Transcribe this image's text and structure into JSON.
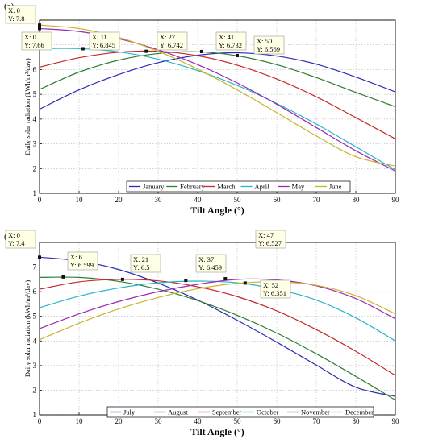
{
  "panels": [
    {
      "panel_label": "(a)",
      "xlabel": "Tilt Angle (°)",
      "ylabel": "Daily solar radiation (kWh/m²/day)",
      "x_ticks": [
        0,
        10,
        20,
        30,
        40,
        50,
        60,
        70,
        80,
        90
      ],
      "y_ticks": [
        1,
        2,
        3,
        4,
        5,
        6,
        7,
        8
      ],
      "datatips": [
        {
          "x_text": "X: 0",
          "y_text": "Y: 7.8"
        },
        {
          "x_text": "X: 0",
          "y_text": "Y: 7.66"
        },
        {
          "x_text": "X: 11",
          "y_text": "Y: 6.845"
        },
        {
          "x_text": "X: 27",
          "y_text": "Y: 6.742"
        },
        {
          "x_text": "X: 41",
          "y_text": "Y: 6.732"
        },
        {
          "x_text": "X: 50",
          "y_text": "Y: 6.569"
        }
      ],
      "legend": [
        "January",
        "February",
        "March",
        "April",
        "May",
        "June"
      ]
    },
    {
      "panel_label": "(b)",
      "xlabel": "Tilt Angle (°)",
      "ylabel": "Daily solar radiation (kWh/m²/day)",
      "x_ticks": [
        0,
        10,
        20,
        30,
        40,
        50,
        60,
        70,
        80,
        90
      ],
      "y_ticks": [
        1,
        2,
        3,
        4,
        5,
        6,
        7,
        8
      ],
      "datatips": [
        {
          "x_text": "X: 0",
          "y_text": "Y: 7.4"
        },
        {
          "x_text": "X: 6",
          "y_text": "Y: 6.599"
        },
        {
          "x_text": "X: 21",
          "y_text": "Y: 6.5"
        },
        {
          "x_text": "X: 37",
          "y_text": "Y: 6.459"
        },
        {
          "x_text": "X: 47",
          "y_text": "Y: 6.527"
        },
        {
          "x_text": "X: 52",
          "y_text": "Y: 6.351"
        }
      ],
      "legend": [
        "July",
        "August",
        "September",
        "October",
        "November",
        "December"
      ]
    }
  ],
  "chart_data": [
    {
      "type": "line",
      "xlabel": "Tilt Angle (°)",
      "ylabel": "Daily solar radiation (kWh/m²/day)",
      "xlim": [
        0,
        90
      ],
      "ylim": [
        1,
        8
      ],
      "grid": true,
      "legend_position": "bottom-center",
      "series": [
        {
          "name": "January",
          "color": "#2b2bb5",
          "x": [
            0,
            10,
            20,
            30,
            40,
            50,
            60,
            70,
            80,
            90
          ],
          "values": [
            4.4,
            5.18,
            5.8,
            6.28,
            6.58,
            6.68,
            6.55,
            6.22,
            5.7,
            5.1
          ]
        },
        {
          "name": "February",
          "color": "#2e7d32",
          "x": [
            0,
            10,
            20,
            30,
            40,
            50,
            60,
            70,
            80,
            90
          ],
          "values": [
            5.2,
            5.9,
            6.38,
            6.65,
            6.72,
            6.56,
            6.2,
            5.68,
            5.08,
            4.5
          ]
        },
        {
          "name": "March",
          "color": "#c62828",
          "x": [
            0,
            10,
            20,
            30,
            40,
            50,
            60,
            70,
            80,
            90
          ],
          "values": [
            6.1,
            6.48,
            6.7,
            6.74,
            6.56,
            6.18,
            5.62,
            4.9,
            4.06,
            3.2
          ]
        },
        {
          "name": "April",
          "color": "#26b5c8",
          "x": [
            0,
            10,
            20,
            30,
            40,
            50,
            60,
            70,
            80,
            90
          ],
          "values": [
            6.85,
            6.85,
            6.72,
            6.42,
            5.96,
            5.36,
            4.63,
            3.8,
            2.88,
            1.95
          ]
        },
        {
          "name": "May",
          "color": "#9c27b0",
          "x": [
            0,
            10,
            20,
            30,
            40,
            50,
            60,
            70,
            80,
            90
          ],
          "values": [
            7.66,
            7.54,
            7.25,
            6.8,
            6.2,
            5.46,
            4.6,
            3.66,
            2.72,
            1.9
          ]
        },
        {
          "name": "June",
          "color": "#c8b42a",
          "x": [
            0,
            10,
            20,
            30,
            40,
            50,
            60,
            70,
            80,
            90
          ],
          "values": [
            7.8,
            7.66,
            7.3,
            6.74,
            6.02,
            5.18,
            4.26,
            3.32,
            2.48,
            2.1
          ]
        }
      ]
    },
    {
      "type": "line",
      "xlabel": "Tilt Angle (°)",
      "ylabel": "Daily solar radiation (kWh/m²/day)",
      "xlim": [
        0,
        90
      ],
      "ylim": [
        1,
        8
      ],
      "grid": true,
      "legend_position": "bottom-center",
      "series": [
        {
          "name": "July",
          "color": "#2b2bb5",
          "x": [
            0,
            10,
            20,
            30,
            40,
            50,
            60,
            70,
            80,
            90
          ],
          "values": [
            7.4,
            7.25,
            6.9,
            6.35,
            5.66,
            4.84,
            3.95,
            3.02,
            2.12,
            1.75
          ]
        },
        {
          "name": "August",
          "color": "#2e7d32",
          "x": [
            0,
            10,
            20,
            30,
            40,
            50,
            60,
            70,
            80,
            90
          ],
          "values": [
            6.58,
            6.58,
            6.42,
            6.1,
            5.64,
            5.04,
            4.32,
            3.48,
            2.56,
            1.6
          ]
        },
        {
          "name": "September",
          "color": "#c62828",
          "x": [
            0,
            10,
            20,
            30,
            40,
            50,
            60,
            70,
            80,
            90
          ],
          "values": [
            6.1,
            6.4,
            6.5,
            6.44,
            6.2,
            5.8,
            5.22,
            4.46,
            3.58,
            2.6
          ]
        },
        {
          "name": "October",
          "color": "#26b5c8",
          "x": [
            0,
            10,
            20,
            30,
            40,
            50,
            60,
            70,
            80,
            90
          ],
          "values": [
            5.35,
            5.82,
            6.15,
            6.36,
            6.43,
            6.36,
            6.1,
            5.66,
            4.94,
            4.0
          ]
        },
        {
          "name": "November",
          "color": "#9c27b0",
          "x": [
            0,
            10,
            20,
            30,
            40,
            50,
            60,
            70,
            80,
            90
          ],
          "values": [
            4.5,
            5.1,
            5.6,
            6.0,
            6.3,
            6.5,
            6.48,
            6.24,
            5.72,
            4.9
          ]
        },
        {
          "name": "December",
          "color": "#c8b42a",
          "x": [
            0,
            10,
            20,
            30,
            40,
            50,
            60,
            70,
            80,
            90
          ],
          "values": [
            4.05,
            4.72,
            5.3,
            5.76,
            6.12,
            6.34,
            6.4,
            6.26,
            5.84,
            5.1
          ]
        }
      ]
    }
  ]
}
